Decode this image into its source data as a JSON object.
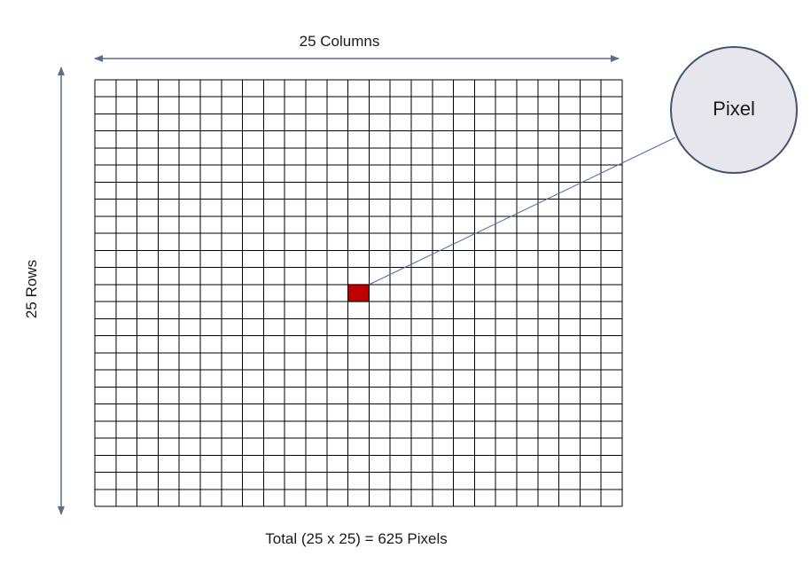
{
  "diagram": {
    "columns_label": "25 Columns",
    "rows_label": "25 Rows",
    "total_label": "Total (25 x 25) = 625 Pixels",
    "callout_label": "Pixel",
    "grid": {
      "columns": 25,
      "rows": 25,
      "highlighted_cell": {
        "column": 13,
        "row": 13
      }
    },
    "colors": {
      "grid_line": "#000000",
      "highlight_fill": "#c00000",
      "arrow": "#5a6e8c",
      "callout_fill": "#e6e6ec",
      "callout_stroke": "#44546a",
      "leader_line": "#4a6da7"
    }
  }
}
